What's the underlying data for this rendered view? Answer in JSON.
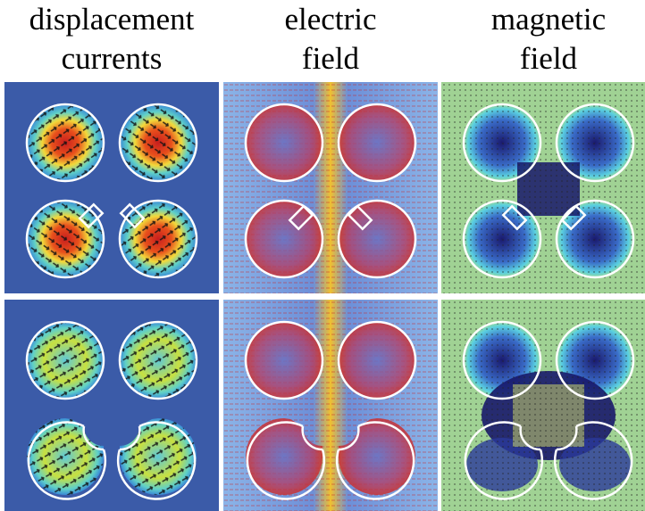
{
  "columns": [
    {
      "line1": "displacement",
      "line2": "currents"
    },
    {
      "line1": "electric",
      "line2": "field"
    },
    {
      "line1": "magnetic",
      "line2": "field"
    }
  ],
  "colors": {
    "background_blue": "#3b5ba8",
    "hot_red": "#d6281c",
    "hot_yellow": "#f2e43a",
    "cyan": "#4fc3e8",
    "dark_navy": "#14145a",
    "outline": "#ffffff"
  }
}
